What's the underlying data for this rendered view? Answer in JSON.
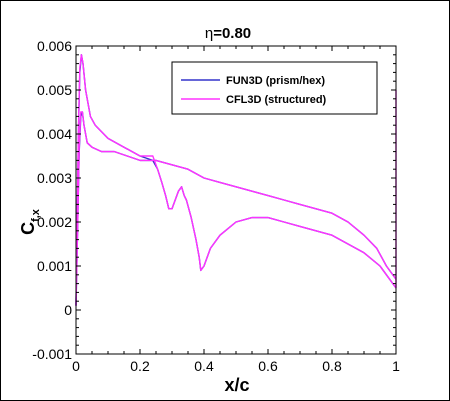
{
  "chart_data": {
    "type": "line",
    "title_prefix": "η",
    "title_value": "=0.80",
    "xlabel": "x/c",
    "ylabel_main": "C",
    "ylabel_sub": "f,x",
    "xlim": [
      0,
      1
    ],
    "ylim": [
      -0.001,
      0.006
    ],
    "x_ticks": [
      0,
      0.2,
      0.4,
      0.6,
      0.8,
      1
    ],
    "x_tick_labels": [
      "0",
      "0.2",
      "0.4",
      "0.6",
      "0.8",
      "1"
    ],
    "y_ticks": [
      -0.001,
      0,
      0.001,
      0.002,
      0.003,
      0.004,
      0.005,
      0.006
    ],
    "y_tick_labels": [
      "-0.001",
      "0",
      "0.001",
      "0.002",
      "0.003",
      "0.004",
      "0.005",
      "0.006"
    ],
    "legend_position": "top-right",
    "series": [
      {
        "name": "FUN3D (prism/hex)",
        "color": "#3333cc",
        "branches": [
          {
            "x": [
              0.0,
              0.003,
              0.008,
              0.012,
              0.017,
              0.022,
              0.03,
              0.045,
              0.06,
              0.1,
              0.15,
              0.2,
              0.24,
              0.255,
              0.268,
              0.28,
              0.29,
              0.3,
              0.31,
              0.32,
              0.33,
              0.338,
              0.345,
              0.36,
              0.375,
              0.385,
              0.39,
              0.4,
              0.42,
              0.45,
              0.5,
              0.55,
              0.6,
              0.65,
              0.7,
              0.75,
              0.8,
              0.85,
              0.9,
              0.95,
              0.98,
              1.0
            ],
            "y": [
              0.0001,
              0.0018,
              0.0042,
              0.0054,
              0.0058,
              0.0056,
              0.005,
              0.0044,
              0.0042,
              0.0039,
              0.0037,
              0.0035,
              0.0034,
              0.0032,
              0.0029,
              0.0026,
              0.0023,
              0.0023,
              0.0025,
              0.0027,
              0.0028,
              0.0026,
              0.0025,
              0.0021,
              0.0016,
              0.0012,
              0.0009,
              0.001,
              0.0014,
              0.0017,
              0.002,
              0.0021,
              0.0021,
              0.002,
              0.0019,
              0.0018,
              0.0017,
              0.0015,
              0.0013,
              0.001,
              0.0007,
              0.0005
            ]
          },
          {
            "x": [
              0.0,
              0.004,
              0.01,
              0.015,
              0.02,
              0.025,
              0.035,
              0.05,
              0.08,
              0.12,
              0.16,
              0.2,
              0.25,
              0.3,
              0.35,
              0.4,
              0.45,
              0.5,
              0.55,
              0.6,
              0.65,
              0.7,
              0.75,
              0.8,
              0.85,
              0.9,
              0.94,
              0.97,
              1.0
            ],
            "y": [
              0.0001,
              0.0015,
              0.0036,
              0.0044,
              0.0045,
              0.0042,
              0.0038,
              0.0037,
              0.0036,
              0.0036,
              0.0035,
              0.0034,
              0.0034,
              0.0033,
              0.0032,
              0.003,
              0.0029,
              0.0028,
              0.0027,
              0.0026,
              0.0025,
              0.0024,
              0.0023,
              0.0022,
              0.002,
              0.0017,
              0.0014,
              0.001,
              0.0007
            ]
          }
        ]
      },
      {
        "name": "CFL3D (structured)",
        "color": "#ff33ff",
        "branches": [
          {
            "x": [
              0.0,
              0.003,
              0.008,
              0.012,
              0.017,
              0.022,
              0.03,
              0.045,
              0.06,
              0.1,
              0.15,
              0.2,
              0.24,
              0.255,
              0.268,
              0.28,
              0.29,
              0.3,
              0.31,
              0.32,
              0.33,
              0.338,
              0.345,
              0.36,
              0.375,
              0.385,
              0.39,
              0.4,
              0.42,
              0.45,
              0.5,
              0.55,
              0.6,
              0.65,
              0.7,
              0.75,
              0.8,
              0.85,
              0.9,
              0.95,
              0.98,
              1.0
            ],
            "y": [
              0.0001,
              0.0018,
              0.0043,
              0.0055,
              0.0058,
              0.0056,
              0.005,
              0.0044,
              0.0042,
              0.0039,
              0.0037,
              0.0035,
              0.0035,
              0.0032,
              0.0029,
              0.0026,
              0.0023,
              0.0023,
              0.0025,
              0.0027,
              0.0028,
              0.0026,
              0.0025,
              0.0021,
              0.0016,
              0.0012,
              0.0009,
              0.001,
              0.0014,
              0.0017,
              0.002,
              0.0021,
              0.0021,
              0.002,
              0.0019,
              0.0018,
              0.0017,
              0.0015,
              0.0013,
              0.001,
              0.0007,
              0.0005
            ]
          },
          {
            "x": [
              0.0,
              0.004,
              0.01,
              0.015,
              0.02,
              0.025,
              0.035,
              0.05,
              0.08,
              0.12,
              0.16,
              0.2,
              0.25,
              0.3,
              0.35,
              0.4,
              0.45,
              0.5,
              0.55,
              0.6,
              0.65,
              0.7,
              0.75,
              0.8,
              0.85,
              0.9,
              0.94,
              0.97,
              1.0
            ],
            "y": [
              0.0001,
              0.0015,
              0.0037,
              0.0045,
              0.0045,
              0.0042,
              0.0038,
              0.0037,
              0.0036,
              0.0036,
              0.0035,
              0.0034,
              0.0034,
              0.0033,
              0.0032,
              0.003,
              0.0029,
              0.0028,
              0.0027,
              0.0026,
              0.0025,
              0.0024,
              0.0023,
              0.0022,
              0.002,
              0.0017,
              0.0014,
              0.001,
              0.0007
            ]
          },
          {
            "x": [
              1.0,
              1.0
            ],
            "y": [
              0.0005,
              0.005
            ]
          }
        ]
      }
    ]
  }
}
